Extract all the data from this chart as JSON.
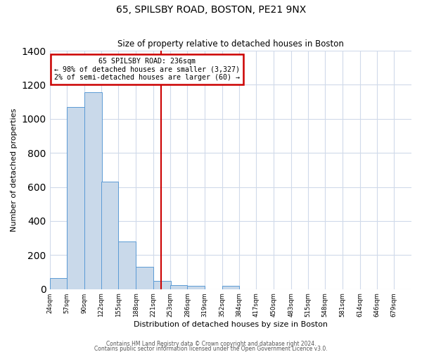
{
  "title": "65, SPILSBY ROAD, BOSTON, PE21 9NX",
  "subtitle": "Size of property relative to detached houses in Boston",
  "xlabel": "Distribution of detached houses by size in Boston",
  "ylabel": "Number of detached properties",
  "bin_labels": [
    "24sqm",
    "57sqm",
    "90sqm",
    "122sqm",
    "155sqm",
    "188sqm",
    "221sqm",
    "253sqm",
    "286sqm",
    "319sqm",
    "352sqm",
    "384sqm",
    "417sqm",
    "450sqm",
    "483sqm",
    "515sqm",
    "548sqm",
    "581sqm",
    "614sqm",
    "646sqm",
    "679sqm"
  ],
  "bar_values": [
    65,
    1070,
    1155,
    630,
    280,
    130,
    50,
    25,
    18,
    0,
    18,
    0,
    0,
    0,
    0,
    0,
    0,
    0,
    0,
    0
  ],
  "bar_color": "#c9d9ea",
  "bar_edge_color": "#5b9bd5",
  "marker_value": 236,
  "bin_edges": [
    24,
    57,
    90,
    122,
    155,
    188,
    221,
    253,
    286,
    319,
    352,
    384,
    417,
    450,
    483,
    515,
    548,
    581,
    614,
    646,
    679
  ],
  "bin_width": 33,
  "ylim": [
    0,
    1400
  ],
  "yticks": [
    0,
    200,
    400,
    600,
    800,
    1000,
    1200,
    1400
  ],
  "annotation_title": "65 SPILSBY ROAD: 236sqm",
  "annotation_line1": "← 98% of detached houses are smaller (3,327)",
  "annotation_line2": "2% of semi-detached houses are larger (60) →",
  "annotation_box_color": "#ffffff",
  "annotation_box_edge_color": "#cc0000",
  "vline_color": "#cc0000",
  "footer1": "Contains HM Land Registry data © Crown copyright and database right 2024.",
  "footer2": "Contains public sector information licensed under the Open Government Licence v3.0.",
  "background_color": "#ffffff",
  "grid_color": "#d0daea"
}
